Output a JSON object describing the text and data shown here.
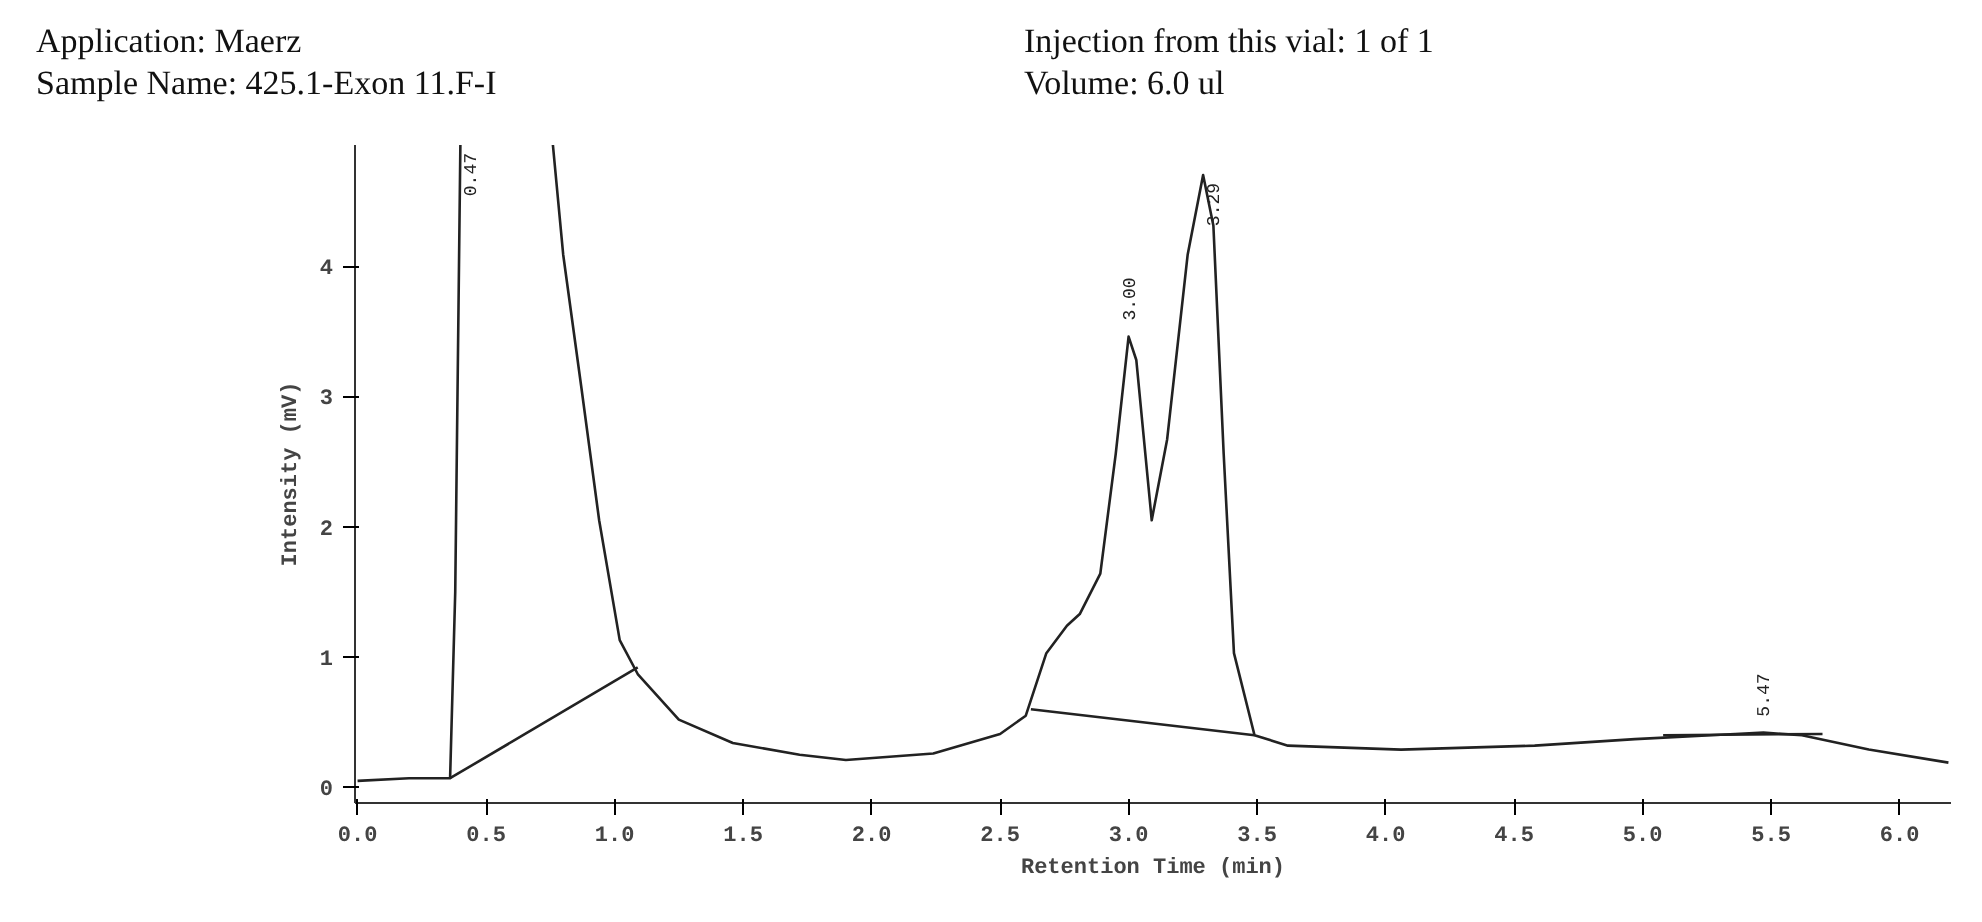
{
  "chart_data": {
    "type": "line",
    "title": "Application: Maerz",
    "subtitle": "Sample Name: 425.1-Exon 11.F-I",
    "annotations": [
      "Injection from this vial: 1 of 1",
      "Volume: 6.0 ul",
      {
        "text": "0.47",
        "x": 0.4,
        "y": 4.93
      },
      {
        "text": "3.00",
        "x": 3.0,
        "y": 3.46
      },
      {
        "text": "3.29",
        "x": 3.29,
        "y": 4.7
      },
      {
        "text": "5.47",
        "x": 5.47,
        "y": 0.42
      }
    ],
    "xlabel": "Retention Time (min)",
    "ylabel": "Intensity (mV)",
    "xlim": [
      -0.01,
      6.2
    ],
    "ylim": [
      -0.12,
      4.93
    ],
    "xticks": [
      {
        "value": 0,
        "label": "0.0"
      },
      0.5,
      {
        "value": 1,
        "label": "1.0"
      },
      1.5,
      {
        "value": 2,
        "label": "2.0"
      },
      2.5,
      {
        "value": 3,
        "label": "3.0"
      },
      3.5,
      {
        "value": 4,
        "label": "4.0"
      },
      4.5,
      {
        "value": 5,
        "label": "5.0"
      },
      5.5,
      {
        "value": 6,
        "label": "6.0"
      }
    ],
    "yticks": [
      0,
      1,
      2,
      3,
      4
    ],
    "grid": false,
    "line_style": "solid",
    "series": [
      {
        "color": "#222222",
        "x": [
          0.0,
          0.2,
          0.36,
          0.38,
          0.4
        ],
        "values": [
          0.05,
          0.07,
          0.07,
          1.5,
          4.93
        ]
      },
      {
        "color": "#222222",
        "x": [
          0.76,
          0.8,
          0.87,
          0.94,
          1.02,
          1.09,
          1.25,
          1.46,
          1.72,
          1.9,
          2.24,
          2.5,
          2.6,
          2.68,
          2.76,
          2.81,
          2.89,
          2.95,
          3.0,
          3.03,
          3.09,
          3.15,
          3.23,
          3.29,
          3.33,
          3.37,
          3.41,
          3.49,
          3.62,
          4.06,
          4.58,
          4.97,
          5.36,
          5.47,
          5.62,
          5.88,
          6.19
        ],
        "values": [
          4.93,
          4.09,
          3.08,
          2.05,
          1.13,
          0.87,
          0.52,
          0.34,
          0.25,
          0.21,
          0.26,
          0.41,
          0.55,
          1.03,
          1.24,
          1.33,
          1.64,
          2.56,
          3.46,
          3.28,
          2.05,
          2.67,
          4.09,
          4.7,
          4.31,
          2.56,
          1.03,
          0.4,
          0.32,
          0.29,
          0.32,
          0.37,
          0.41,
          0.42,
          0.4,
          0.29,
          0.19
        ]
      },
      {
        "color": "#222222",
        "x": [
          0.36,
          1.09
        ],
        "values": [
          0.07,
          0.92
        ]
      },
      {
        "color": "#222222",
        "x": [
          2.62,
          3.49
        ],
        "values": [
          0.6,
          0.4
        ]
      },
      {
        "color": "#222222",
        "x": [
          5.08,
          5.7
        ],
        "values": [
          0.4,
          0.41
        ]
      }
    ]
  }
}
